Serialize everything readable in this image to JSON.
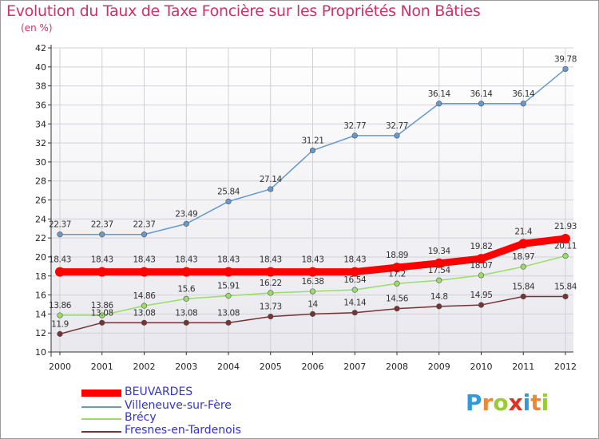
{
  "chart_data": {
    "type": "line",
    "title": "Evolution du Taux de Taxe Foncière sur les Propriétés Non Bâties",
    "subtitle": "(en %)",
    "x": [
      "2000",
      "2001",
      "2002",
      "2003",
      "2004",
      "2005",
      "2006",
      "2007",
      "2008",
      "2009",
      "2010",
      "2011",
      "2012"
    ],
    "ylim": [
      10,
      42
    ],
    "yticks": [
      "10",
      "12",
      "14",
      "16",
      "18",
      "20",
      "22",
      "24",
      "26",
      "28",
      "30",
      "32",
      "34",
      "36",
      "38",
      "40",
      "42"
    ],
    "grid": true,
    "legend_position": "bottom-left",
    "series": [
      {
        "name": "BEUVARDES",
        "color": "#ff0000",
        "values": [
          18.43,
          18.43,
          18.43,
          18.43,
          18.43,
          18.43,
          18.43,
          18.43,
          18.89,
          19.34,
          19.82,
          21.4,
          21.93
        ],
        "labels": [
          "18.43",
          "18.43",
          "18.43",
          "18.43",
          "18.43",
          "18.43",
          "18.43",
          "18.43",
          "18.89",
          "19.34",
          "19.82",
          "21.4",
          "21.93"
        ]
      },
      {
        "name": "Villeneuve-sur-Fère",
        "color": "#6699cc",
        "values": [
          22.37,
          22.37,
          22.37,
          23.49,
          25.84,
          27.14,
          31.21,
          32.77,
          32.77,
          36.14,
          36.14,
          36.14,
          39.78
        ],
        "labels": [
          "22.37",
          "22.37",
          "22.37",
          "23.49",
          "25.84",
          "27.14",
          "31.21",
          "32.77",
          "32.77",
          "36.14",
          "36.14",
          "36.14",
          "39.78"
        ]
      },
      {
        "name": "Brécy",
        "color": "#99dd66",
        "values": [
          13.86,
          13.86,
          14.86,
          15.6,
          15.91,
          16.22,
          16.38,
          16.54,
          17.2,
          17.54,
          18.07,
          18.97,
          20.11
        ],
        "labels": [
          "13.86",
          "13.86",
          "14.86",
          "15.6",
          "15.91",
          "16.22",
          "16.38",
          "16.54",
          "17.2",
          "17.54",
          "18.07",
          "18.97",
          "20.11"
        ]
      },
      {
        "name": "Fresnes-en-Tardenois",
        "color": "#773333",
        "values": [
          11.9,
          13.08,
          13.08,
          13.08,
          13.08,
          13.73,
          14,
          14.14,
          14.56,
          14.8,
          14.95,
          15.84,
          15.84
        ],
        "labels": [
          "11.9",
          "13.08",
          "13.08",
          "13.08",
          "13.08",
          "13.73",
          "14",
          "14.14",
          "14.56",
          "14.8",
          "14.95",
          "15.84",
          "15.84"
        ]
      }
    ]
  },
  "logo": {
    "letters": [
      "P",
      "r",
      "o",
      "x",
      "i",
      "t",
      "i"
    ]
  }
}
